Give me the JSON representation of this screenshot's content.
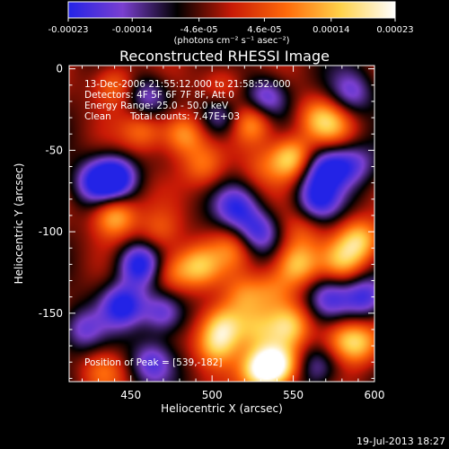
{
  "chart_data": {
    "type": "heatmap",
    "title": "Reconstructed RHESSI Image",
    "xlabel": "Heliocentric X (arcsec)",
    "ylabel": "Heliocentric Y (arcsec)",
    "xlim": [
      412,
      600
    ],
    "ylim": [
      -192,
      2
    ],
    "x_ticks": [
      450,
      500,
      550,
      600
    ],
    "y_ticks": [
      0,
      -50,
      -100,
      -150
    ],
    "grid": false,
    "colorbar": {
      "position": "top",
      "min": -0.00023,
      "max": 0.00023,
      "tick_labels": [
        "-0.00023",
        "-0.00014",
        "-4.6e-05",
        "4.6e-05",
        "0.00014",
        "0.00023"
      ],
      "unit_label": "(photons cm⁻² s⁻¹ asec⁻²)",
      "colormap_stops": [
        "#2323e6",
        "#7a3fd0",
        "#000000",
        "#c81a06",
        "#ff6a0a",
        "#ffd24a",
        "#ffffff"
      ]
    },
    "annotations": {
      "time_range": "13-Dec-2006 21:55:12.000 to 21:58:52.000",
      "detectors": "Detectors: 4F 5F 6F 7F 8F, Att 0",
      "energy_range": "Energy Range: 25.0 - 50.0 keV",
      "algorithm": "Clean",
      "total_counts": "Total counts: 7.47E+03",
      "peak_position": "Position of Peak = [539,-182]"
    },
    "peak": [
      539,
      -182
    ],
    "sources": [
      {
        "x": 530,
        "y": -185,
        "value": 0.00023
      },
      {
        "x": 541,
        "y": -182,
        "value": 0.00023
      },
      {
        "x": 549,
        "y": -55,
        "value": 0.00022
      },
      {
        "x": 525,
        "y": -33,
        "value": 0.00017
      },
      {
        "x": 565,
        "y": -30,
        "value": 0.00012
      },
      {
        "x": 575,
        "y": -35,
        "value": 0.0001
      },
      {
        "x": 552,
        "y": -120,
        "value": 0.00019
      },
      {
        "x": 580,
        "y": -118,
        "value": 0.00013
      },
      {
        "x": 591,
        "y": -105,
        "value": 0.00018
      },
      {
        "x": 538,
        "y": -135,
        "value": 0.0001
      },
      {
        "x": 520,
        "y": -140,
        "value": 0.00012
      },
      {
        "x": 548,
        "y": -158,
        "value": 0.00016
      },
      {
        "x": 527,
        "y": -160,
        "value": 0.00012
      },
      {
        "x": 577,
        "y": -165,
        "value": 9e-05
      },
      {
        "x": 589,
        "y": -168,
        "value": 0.00018
      },
      {
        "x": 506,
        "y": -10,
        "value": 0.0001
      },
      {
        "x": 482,
        "y": -40,
        "value": 0.00016
      },
      {
        "x": 458,
        "y": -38,
        "value": 0.00012
      },
      {
        "x": 440,
        "y": -10,
        "value": 0.00013
      },
      {
        "x": 495,
        "y": -60,
        "value": 0.00011
      },
      {
        "x": 440,
        "y": -90,
        "value": 0.00019
      },
      {
        "x": 468,
        "y": -100,
        "value": 9e-05
      },
      {
        "x": 492,
        "y": -121,
        "value": 0.00016
      },
      {
        "x": 475,
        "y": -125,
        "value": 0.00012
      },
      {
        "x": 513,
        "y": -110,
        "value": 0.0001
      },
      {
        "x": 507,
        "y": -157,
        "value": 0.00019
      },
      {
        "x": 503,
        "y": -170,
        "value": 0.00017
      },
      {
        "x": 433,
        "y": -185,
        "value": 9e-05
      },
      {
        "x": 555,
        "y": -100,
        "value": 8e-05
      },
      {
        "x": 530,
        "y": -60,
        "value": 7e-05
      },
      {
        "x": 563,
        "y": -62,
        "value": -0.0001
      },
      {
        "x": 565,
        "y": -80,
        "value": -0.00017
      },
      {
        "x": 575,
        "y": -60,
        "value": -0.00014
      },
      {
        "x": 440,
        "y": -67,
        "value": -0.00023
      },
      {
        "x": 427,
        "y": -70,
        "value": -0.00014
      },
      {
        "x": 455,
        "y": -120,
        "value": -0.00021
      },
      {
        "x": 445,
        "y": -145,
        "value": -0.00019
      },
      {
        "x": 470,
        "y": -150,
        "value": -0.00016
      },
      {
        "x": 515,
        "y": -85,
        "value": -0.00015
      },
      {
        "x": 505,
        "y": -30,
        "value": -0.00014
      },
      {
        "x": 460,
        "y": -17,
        "value": -0.00013
      },
      {
        "x": 533,
        "y": -18,
        "value": -0.00016
      },
      {
        "x": 586,
        "y": -15,
        "value": -0.00012
      },
      {
        "x": 594,
        "y": -140,
        "value": -0.00016
      },
      {
        "x": 572,
        "y": -140,
        "value": -0.00014
      },
      {
        "x": 528,
        "y": -100,
        "value": -0.00016
      },
      {
        "x": 420,
        "y": -160,
        "value": -0.00012
      },
      {
        "x": 463,
        "y": -180,
        "value": -0.00014
      },
      {
        "x": 565,
        "y": -183,
        "value": -0.00011
      },
      {
        "x": 589,
        "y": -58,
        "value": -0.0001
      }
    ]
  },
  "footer": {
    "date_stamp": "19-Jul-2013 18:27"
  }
}
